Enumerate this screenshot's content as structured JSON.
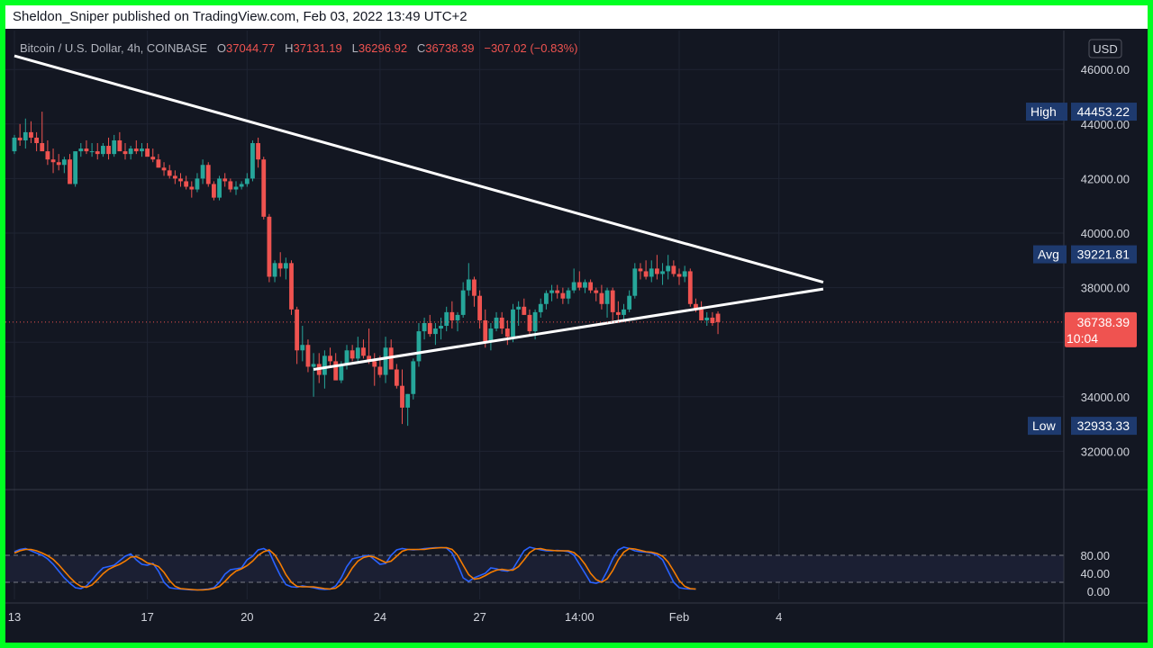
{
  "header": {
    "publisher": "Sheldon_Sniper published on TradingView.com, Feb 03, 2022 13:49 UTC+2"
  },
  "symbol": {
    "name": "Bitcoin / U.S. Dollar, 4h, COINBASE",
    "o_label": "O",
    "o_value": "37044.77",
    "h_label": "H",
    "h_value": "37131.19",
    "l_label": "L",
    "l_value": "36296.92",
    "c_label": "C",
    "c_value": "36738.39",
    "change": "−307.02 (−0.83%)"
  },
  "price_axis": {
    "currency": "USD",
    "ticks": [
      "46000.00",
      "44000.00",
      "42000.00",
      "40000.00",
      "38000.00",
      "34000.00",
      "32000.00"
    ],
    "tick_values": [
      46000,
      44000,
      42000,
      40000,
      38000,
      34000,
      32000
    ]
  },
  "markers": {
    "high": {
      "label": "High",
      "value": "44453.22",
      "price": 44453.22
    },
    "avg": {
      "label": "Avg",
      "value": "39221.81",
      "price": 39221.81
    },
    "low": {
      "label": "Low",
      "value": "32933.33",
      "price": 32933.33
    },
    "last": {
      "value": "36738.39",
      "countdown": "10:04",
      "price": 36738.39
    }
  },
  "time_axis": {
    "labels": [
      "13",
      "17",
      "20",
      "24",
      "27",
      "14:00",
      "Feb",
      "4"
    ],
    "bar_index": [
      0,
      24,
      42,
      66,
      84,
      102,
      120,
      138
    ]
  },
  "osc_axis": {
    "ticks": [
      "80.00",
      "40.00",
      "0.00"
    ],
    "tick_values": [
      80,
      40,
      0
    ],
    "guide_levels": [
      80,
      20
    ]
  },
  "colors": {
    "background": "#131722",
    "up": "#26a69a",
    "down": "#ef5350",
    "k_line": "#2962ff",
    "d_line": "#f57c00",
    "trendline": "#ffffff",
    "marker_bg": "#1e3a6e",
    "last_bg": "#ef5350"
  },
  "chart_data": {
    "type": "candlestick",
    "interval": "4h",
    "candles_ohlc": [
      [
        43000,
        43600,
        42900,
        43500
      ],
      [
        43500,
        44000,
        43200,
        43400
      ],
      [
        43400,
        44200,
        43100,
        43700
      ],
      [
        43700,
        44100,
        43300,
        43500
      ],
      [
        43500,
        43700,
        43000,
        43300
      ],
      [
        43300,
        44453,
        43200,
        43000
      ],
      [
        43000,
        43400,
        42500,
        42700
      ],
      [
        42700,
        43100,
        42200,
        42600
      ],
      [
        42600,
        42900,
        42300,
        42500
      ],
      [
        42500,
        42800,
        42200,
        42700
      ],
      [
        42700,
        42900,
        42000,
        41800
      ],
      [
        41800,
        43000,
        41700,
        43000
      ],
      [
        43000,
        43300,
        42800,
        43100
      ],
      [
        43100,
        43400,
        42900,
        43000
      ],
      [
        43000,
        43300,
        42800,
        43000
      ],
      [
        43000,
        43300,
        42700,
        42900
      ],
      [
        42900,
        43300,
        42800,
        43200
      ],
      [
        43200,
        43500,
        42700,
        42900
      ],
      [
        42900,
        43600,
        42800,
        43400
      ],
      [
        43400,
        43700,
        43100,
        43000
      ],
      [
        43000,
        43300,
        42700,
        42900
      ],
      [
        42900,
        43200,
        42700,
        43100
      ],
      [
        43100,
        43400,
        42900,
        43000
      ],
      [
        43000,
        43300,
        42800,
        43100
      ],
      [
        43100,
        43300,
        42900,
        42800
      ],
      [
        42800,
        43100,
        42600,
        42700
      ],
      [
        42700,
        42900,
        42400,
        42400
      ],
      [
        42400,
        42600,
        42100,
        42300
      ],
      [
        42300,
        42500,
        42000,
        42100
      ],
      [
        42100,
        42300,
        41800,
        42000
      ],
      [
        42000,
        42200,
        41700,
        41900
      ],
      [
        41900,
        42100,
        41600,
        41700
      ],
      [
        41700,
        41900,
        41300,
        41600
      ],
      [
        41600,
        42200,
        41500,
        42000
      ],
      [
        42000,
        42700,
        41800,
        42500
      ],
      [
        42500,
        42600,
        41700,
        41800
      ],
      [
        41800,
        41900,
        41200,
        41300
      ],
      [
        41300,
        42100,
        41200,
        42000
      ],
      [
        42000,
        42200,
        41700,
        41900
      ],
      [
        41900,
        42000,
        41500,
        41600
      ],
      [
        41600,
        41900,
        41400,
        41700
      ],
      [
        41700,
        41900,
        41600,
        41800
      ],
      [
        41800,
        42200,
        41700,
        42000
      ],
      [
        42000,
        43400,
        41900,
        43300
      ],
      [
        43300,
        43500,
        42400,
        42700
      ],
      [
        42700,
        42800,
        40500,
        40600
      ],
      [
        40600,
        40700,
        38200,
        38400
      ],
      [
        38400,
        39000,
        38200,
        38900
      ],
      [
        38900,
        39300,
        38400,
        38700
      ],
      [
        38700,
        39100,
        38300,
        38900
      ],
      [
        38900,
        39000,
        37000,
        37200
      ],
      [
        37200,
        37300,
        35200,
        35700
      ],
      [
        35700,
        36600,
        35300,
        35900
      ],
      [
        35900,
        36100,
        34900,
        35100
      ],
      [
        35100,
        35600,
        34000,
        35200
      ],
      [
        35200,
        35600,
        34500,
        34800
      ],
      [
        34800,
        35700,
        34300,
        35500
      ],
      [
        35500,
        35800,
        35100,
        35300
      ],
      [
        35300,
        35600,
        34700,
        34600
      ],
      [
        34600,
        35300,
        34500,
        35200
      ],
      [
        35200,
        35900,
        35000,
        35700
      ],
      [
        35700,
        35900,
        35300,
        35400
      ],
      [
        35400,
        36200,
        35300,
        35800
      ],
      [
        35800,
        36100,
        35400,
        35500
      ],
      [
        35500,
        36500,
        35200,
        35300
      ],
      [
        35300,
        35600,
        34400,
        35100
      ],
      [
        35100,
        35500,
        34700,
        34800
      ],
      [
        34800,
        36200,
        34500,
        35800
      ],
      [
        35800,
        36100,
        35000,
        35000
      ],
      [
        35000,
        35200,
        34300,
        34400
      ],
      [
        34400,
        35000,
        33000,
        33600
      ],
      [
        33600,
        34100,
        32933,
        34100
      ],
      [
        34100,
        35400,
        33900,
        35300
      ],
      [
        35300,
        36700,
        35100,
        36400
      ],
      [
        36400,
        36900,
        36100,
        36700
      ],
      [
        36700,
        37000,
        36200,
        36300
      ],
      [
        36300,
        36700,
        35900,
        36500
      ],
      [
        36500,
        36900,
        36100,
        36600
      ],
      [
        36600,
        37300,
        36400,
        37100
      ],
      [
        37100,
        37500,
        36500,
        36800
      ],
      [
        36800,
        37100,
        36400,
        37000
      ],
      [
        37000,
        38200,
        36900,
        37900
      ],
      [
        37900,
        38900,
        37700,
        38300
      ],
      [
        38300,
        38400,
        37300,
        37700
      ],
      [
        37700,
        37900,
        36500,
        36800
      ],
      [
        36800,
        37200,
        35800,
        36000
      ],
      [
        36000,
        36700,
        35700,
        36500
      ],
      [
        36500,
        37100,
        36400,
        36900
      ],
      [
        36900,
        37100,
        36300,
        36500
      ],
      [
        36500,
        36800,
        35900,
        36200
      ],
      [
        36200,
        37400,
        36000,
        37200
      ],
      [
        37200,
        37500,
        36600,
        37300
      ],
      [
        37300,
        37600,
        37000,
        37000
      ],
      [
        37000,
        37200,
        36300,
        36400
      ],
      [
        36400,
        37200,
        36100,
        37100
      ],
      [
        37100,
        37600,
        36900,
        37400
      ],
      [
        37400,
        37900,
        37200,
        37800
      ],
      [
        37800,
        38100,
        37500,
        37900
      ],
      [
        37900,
        38100,
        37600,
        37800
      ],
      [
        37800,
        38000,
        37400,
        37600
      ],
      [
        37600,
        38000,
        37400,
        37900
      ],
      [
        37900,
        38700,
        37800,
        38200
      ],
      [
        38200,
        38600,
        37900,
        38000
      ],
      [
        38000,
        38300,
        37800,
        38200
      ],
      [
        38200,
        38300,
        37800,
        37900
      ],
      [
        37900,
        38000,
        37500,
        37800
      ],
      [
        37800,
        38100,
        37200,
        37400
      ],
      [
        37400,
        38000,
        36900,
        37900
      ],
      [
        37900,
        38000,
        36800,
        37100
      ],
      [
        37100,
        37500,
        36700,
        37000
      ],
      [
        37000,
        37400,
        36800,
        37200
      ],
      [
        37200,
        37900,
        37100,
        37700
      ],
      [
        37700,
        38900,
        37600,
        38700
      ],
      [
        38700,
        38900,
        38300,
        38600
      ],
      [
        38600,
        39000,
        38300,
        38400
      ],
      [
        38400,
        39000,
        38200,
        38700
      ],
      [
        38700,
        39200,
        38300,
        38500
      ],
      [
        38500,
        38900,
        38100,
        38600
      ],
      [
        38600,
        39200,
        38300,
        38800
      ],
      [
        38800,
        39000,
        38400,
        38500
      ],
      [
        38500,
        38700,
        38100,
        38400
      ],
      [
        38400,
        38800,
        38200,
        38600
      ],
      [
        38600,
        38700,
        37300,
        37400
      ],
      [
        37400,
        37600,
        37100,
        37200
      ],
      [
        37200,
        37500,
        36800,
        36800
      ],
      [
        36800,
        37100,
        36600,
        36900
      ],
      [
        36900,
        37100,
        36600,
        36700
      ],
      [
        37044.77,
        37131.19,
        36296.92,
        36738.39
      ]
    ],
    "stochastic": {
      "k": [
        88,
        93,
        95,
        90,
        85,
        80,
        72,
        60,
        45,
        30,
        18,
        8,
        6,
        12,
        25,
        40,
        52,
        55,
        58,
        68,
        78,
        83,
        70,
        60,
        58,
        62,
        45,
        20,
        8,
        6,
        5,
        4,
        3,
        3,
        4,
        5,
        8,
        20,
        38,
        48,
        50,
        52,
        70,
        78,
        92,
        95,
        88,
        60,
        35,
        15,
        10,
        9,
        12,
        10,
        8,
        5,
        4,
        5,
        12,
        30,
        55,
        72,
        75,
        78,
        80,
        70,
        60,
        62,
        80,
        92,
        95,
        93,
        92,
        93,
        95,
        96,
        97,
        97,
        96,
        85,
        60,
        30,
        22,
        30,
        35,
        40,
        52,
        50,
        46,
        45,
        50,
        70,
        90,
        98,
        95,
        92,
        90,
        90,
        91,
        90,
        88,
        80,
        60,
        40,
        20,
        18,
        22,
        45,
        72,
        92,
        98,
        95,
        90,
        88,
        87,
        85,
        80,
        70,
        45,
        20,
        8,
        6,
        5,
        5
      ],
      "d": [
        85,
        90,
        93,
        93,
        90,
        85,
        79,
        71,
        59,
        45,
        31,
        19,
        11,
        9,
        14,
        26,
        39,
        49,
        55,
        60,
        67,
        76,
        77,
        71,
        63,
        60,
        55,
        42,
        24,
        11,
        6,
        5,
        4,
        3,
        3,
        4,
        6,
        11,
        22,
        35,
        45,
        50,
        57,
        67,
        80,
        88,
        92,
        81,
        61,
        37,
        20,
        11,
        10,
        10,
        10,
        8,
        6,
        5,
        7,
        16,
        32,
        52,
        67,
        75,
        78,
        76,
        70,
        64,
        67,
        78,
        89,
        93,
        93,
        93,
        93,
        95,
        96,
        97,
        97,
        93,
        80,
        58,
        37,
        27,
        29,
        35,
        42,
        47,
        49,
        47,
        47,
        55,
        70,
        86,
        94,
        95,
        92,
        91,
        90,
        90,
        90,
        86,
        76,
        60,
        40,
        26,
        20,
        28,
        46,
        70,
        87,
        95,
        94,
        91,
        88,
        87,
        84,
        78,
        65,
        45,
        24,
        11,
        6,
        5
      ]
    },
    "trendlines": [
      {
        "from": [
          0,
          46500
        ],
        "to": [
          146,
          38200
        ]
      },
      {
        "from": [
          54,
          35000
        ],
        "to": [
          146,
          37950
        ]
      }
    ]
  }
}
